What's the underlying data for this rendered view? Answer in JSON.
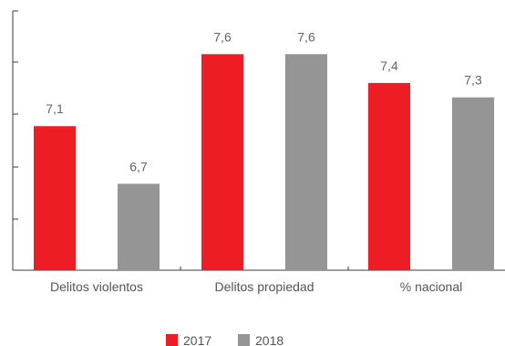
{
  "chart_data": {
    "type": "bar",
    "categories": [
      "Delitos violentos",
      "Delitos propiedad",
      "% nacional"
    ],
    "series": [
      {
        "name": "2017",
        "values": [
          7.1,
          7.6,
          7.4
        ],
        "labels": [
          "7,1",
          "7,6",
          "7,4"
        ],
        "color": "#ee1c25"
      },
      {
        "name": "2018",
        "values": [
          6.7,
          7.6,
          7.3
        ],
        "labels": [
          "6,7",
          "7,6",
          "7,3"
        ],
        "color": "#959595"
      }
    ],
    "ylim": [
      6.1,
      7.9
    ],
    "grid": false,
    "legend": "bottom-center",
    "axis_color": "#3c3c3c"
  }
}
